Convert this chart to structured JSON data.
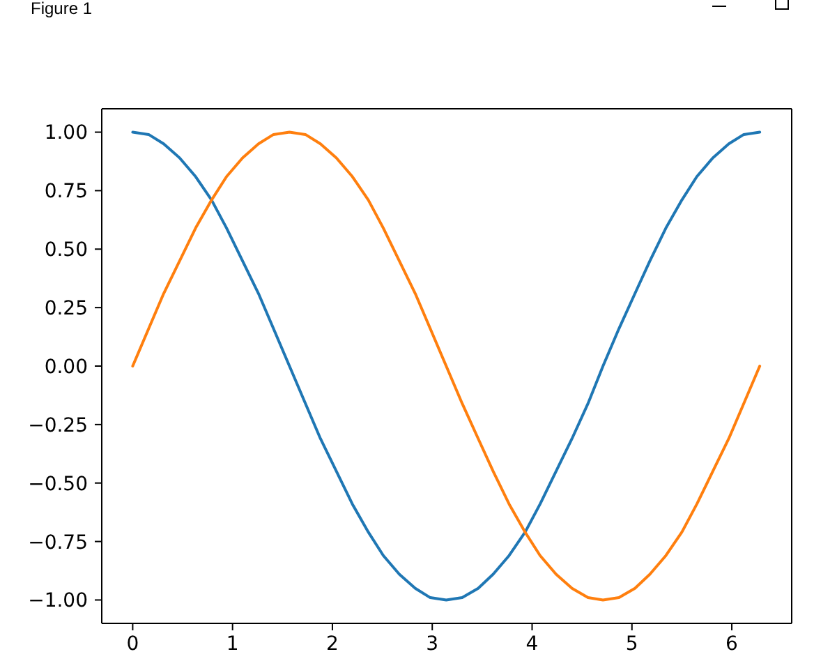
{
  "chart_data": {
    "type": "line",
    "annotations": [
      "Figure 1"
    ],
    "x": [
      0,
      0.16,
      0.31,
      0.47,
      0.63,
      0.79,
      0.94,
      1.1,
      1.26,
      1.41,
      1.57,
      1.73,
      1.88,
      2.04,
      2.2,
      2.36,
      2.51,
      2.67,
      2.83,
      2.98,
      3.14,
      3.3,
      3.46,
      3.61,
      3.77,
      3.93,
      4.08,
      4.24,
      4.4,
      4.56,
      4.71,
      4.87,
      5.03,
      5.18,
      5.34,
      5.5,
      5.65,
      5.81,
      5.97,
      6.12,
      6.28
    ],
    "series": [
      {
        "color": "#1f77b4",
        "values": [
          1,
          0.99,
          0.95,
          0.89,
          0.81,
          0.71,
          0.59,
          0.45,
          0.31,
          0.16,
          0,
          -0.16,
          -0.31,
          -0.45,
          -0.59,
          -0.71,
          -0.81,
          -0.89,
          -0.95,
          -0.99,
          -1,
          -0.99,
          -0.95,
          -0.89,
          -0.81,
          -0.71,
          -0.59,
          -0.45,
          -0.31,
          -0.16,
          0,
          0.16,
          0.31,
          0.45,
          0.59,
          0.71,
          0.81,
          0.89,
          0.95,
          0.99,
          1
        ]
      },
      {
        "color": "#ff7f0e",
        "values": [
          0,
          0.16,
          0.31,
          0.45,
          0.59,
          0.71,
          0.81,
          0.89,
          0.95,
          0.99,
          1,
          0.99,
          0.95,
          0.89,
          0.81,
          0.71,
          0.59,
          0.45,
          0.31,
          0.16,
          0,
          -0.16,
          -0.31,
          -0.45,
          -0.59,
          -0.71,
          -0.81,
          -0.89,
          -0.95,
          -0.99,
          -1,
          -0.99,
          -0.95,
          -0.89,
          -0.81,
          -0.71,
          -0.59,
          -0.45,
          -0.31,
          -0.16,
          0
        ]
      }
    ],
    "xlim": [
      -0.31,
      6.6
    ],
    "ylim": [
      -1.1,
      1.1
    ],
    "xticks": [
      0,
      1,
      2,
      3,
      4,
      5,
      6
    ],
    "yticks": [
      {
        "value": -1,
        "label": "−1.00"
      },
      {
        "value": -0.75,
        "label": "−0.75"
      },
      {
        "value": -0.5,
        "label": "−0.50"
      },
      {
        "value": -0.25,
        "label": "−0.25"
      },
      {
        "value": 0,
        "label": "0.00"
      },
      {
        "value": 0.25,
        "label": "0.25"
      },
      {
        "value": 0.5,
        "label": "0.50"
      },
      {
        "value": 0.75,
        "label": "0.75"
      },
      {
        "value": 1,
        "label": "1.00"
      }
    ],
    "marker": "none",
    "line_style": "solid"
  }
}
